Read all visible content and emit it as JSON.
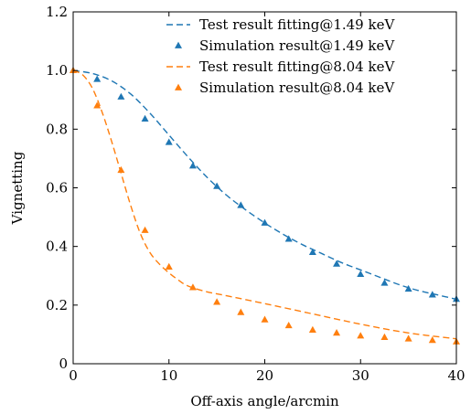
{
  "chart_data": {
    "type": "line",
    "xlabel": "Off-axis angle/arcmin",
    "ylabel": "Vignetting",
    "xlim": [
      0,
      40
    ],
    "ylim": [
      0,
      1.2
    ],
    "xticks": [
      0,
      10,
      20,
      30,
      40
    ],
    "yticks": [
      0,
      0.2,
      0.4,
      0.6,
      0.8,
      1.0,
      1.2
    ],
    "xtick_labels": [
      "0",
      "10",
      "20",
      "30",
      "40"
    ],
    "ytick_labels": [
      "0",
      "0.2",
      "0.4",
      "0.6",
      "0.8",
      "1.0",
      "1.2"
    ],
    "grid": false,
    "legend_position": "top-right",
    "series": [
      {
        "name": "Test result fitting@1.49 keV",
        "kind": "dashed-line",
        "color": "#1f77b4",
        "x": [
          0,
          2,
          4,
          6,
          8,
          10,
          12,
          14,
          16,
          18,
          20,
          22,
          24,
          26,
          28,
          30,
          32,
          34,
          36,
          38,
          40
        ],
        "y": [
          1.0,
          0.99,
          0.965,
          0.92,
          0.855,
          0.78,
          0.705,
          0.635,
          0.575,
          0.525,
          0.48,
          0.44,
          0.405,
          0.375,
          0.345,
          0.32,
          0.295,
          0.27,
          0.25,
          0.235,
          0.22
        ]
      },
      {
        "name": "Simulation result@1.49 keV",
        "kind": "triangle-markers",
        "color": "#1f77b4",
        "x": [
          0,
          2.5,
          5,
          7.5,
          10,
          12.5,
          15,
          17.5,
          20,
          22.5,
          25,
          27.5,
          30,
          32.5,
          35,
          37.5,
          40
        ],
        "y": [
          1.0,
          0.97,
          0.91,
          0.835,
          0.755,
          0.675,
          0.605,
          0.54,
          0.48,
          0.425,
          0.38,
          0.34,
          0.305,
          0.275,
          0.255,
          0.235,
          0.22
        ]
      },
      {
        "name": "Test result fitting@8.04 keV",
        "kind": "dashed-line",
        "color": "#ff7f0e",
        "x": [
          0,
          1,
          2,
          3,
          4,
          5,
          6,
          7,
          8,
          9,
          10,
          11,
          12,
          14,
          16,
          20,
          25,
          30,
          35,
          40
        ],
        "y": [
          1.0,
          0.985,
          0.94,
          0.86,
          0.76,
          0.65,
          0.54,
          0.445,
          0.38,
          0.34,
          0.31,
          0.285,
          0.265,
          0.245,
          0.232,
          0.205,
          0.17,
          0.135,
          0.105,
          0.085
        ]
      },
      {
        "name": "Simulation result@8.04 keV",
        "kind": "triangle-markers",
        "color": "#ff7f0e",
        "x": [
          0,
          2.5,
          5,
          7.5,
          10,
          12.5,
          15,
          17.5,
          20,
          22.5,
          25,
          27.5,
          30,
          32.5,
          35,
          37.5,
          40
        ],
        "y": [
          1.0,
          0.88,
          0.66,
          0.455,
          0.33,
          0.26,
          0.21,
          0.175,
          0.15,
          0.13,
          0.115,
          0.105,
          0.095,
          0.09,
          0.085,
          0.08,
          0.075
        ]
      }
    ]
  }
}
